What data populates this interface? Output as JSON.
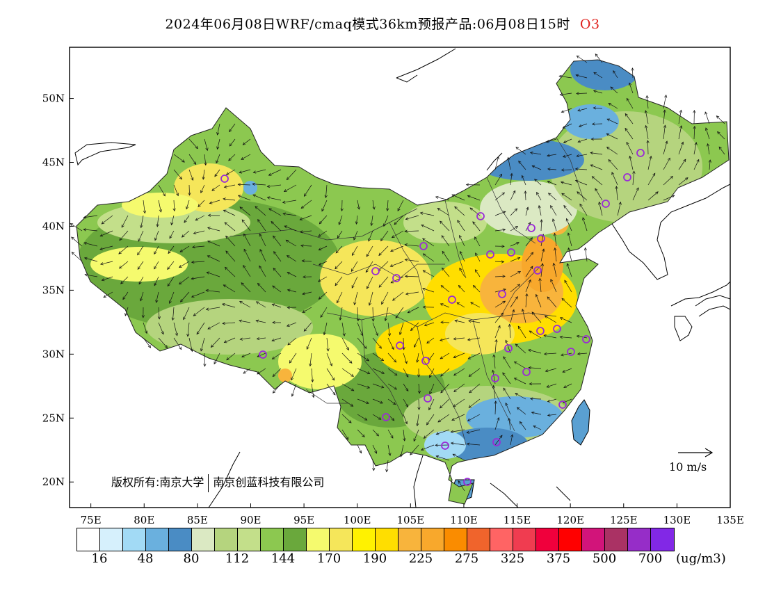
{
  "title": {
    "main": "2024年06月08日WRF/cmaq模式36km预报产品:06月08日15时",
    "pollutant": "O3"
  },
  "map": {
    "lon_ticks": [
      "75E",
      "80E",
      "85E",
      "90E",
      "95E",
      "100E",
      "105E",
      "110E",
      "115E",
      "120E",
      "125E",
      "130E",
      "135E"
    ],
    "lat_ticks": [
      "20N",
      "25N",
      "30N",
      "35N",
      "40N",
      "45N",
      "50N"
    ],
    "lon_range": [
      73,
      135
    ],
    "lat_range": [
      18,
      54
    ],
    "copyright_left": "版权所有:南京大学",
    "copyright_right": "南京创蓝科技有限公司",
    "wind_reference": "10 m/s",
    "station_color": "#9a2bd6"
  },
  "colorbar": {
    "colors": [
      "#ffffff",
      "#d6f0fc",
      "#a2daf5",
      "#6ab0de",
      "#4a8cc4",
      "#dbe9c3",
      "#b5d47e",
      "#c3df8a",
      "#8cc850",
      "#6aa83c",
      "#f5fa6e",
      "#f5e65a",
      "#fff200",
      "#ffde00",
      "#f8b43c",
      "#f8a82c",
      "#fa8c00",
      "#f0642c",
      "#ff6464",
      "#f03c50",
      "#f0003c",
      "#ff0000",
      "#d2147a",
      "#aa3264",
      "#962dc8",
      "#8228e6"
    ],
    "labels": [
      "16",
      "48",
      "80",
      "112",
      "144",
      "170",
      "190",
      "225",
      "275",
      "325",
      "375",
      "500",
      "700"
    ],
    "units": "(ug/m3)"
  }
}
